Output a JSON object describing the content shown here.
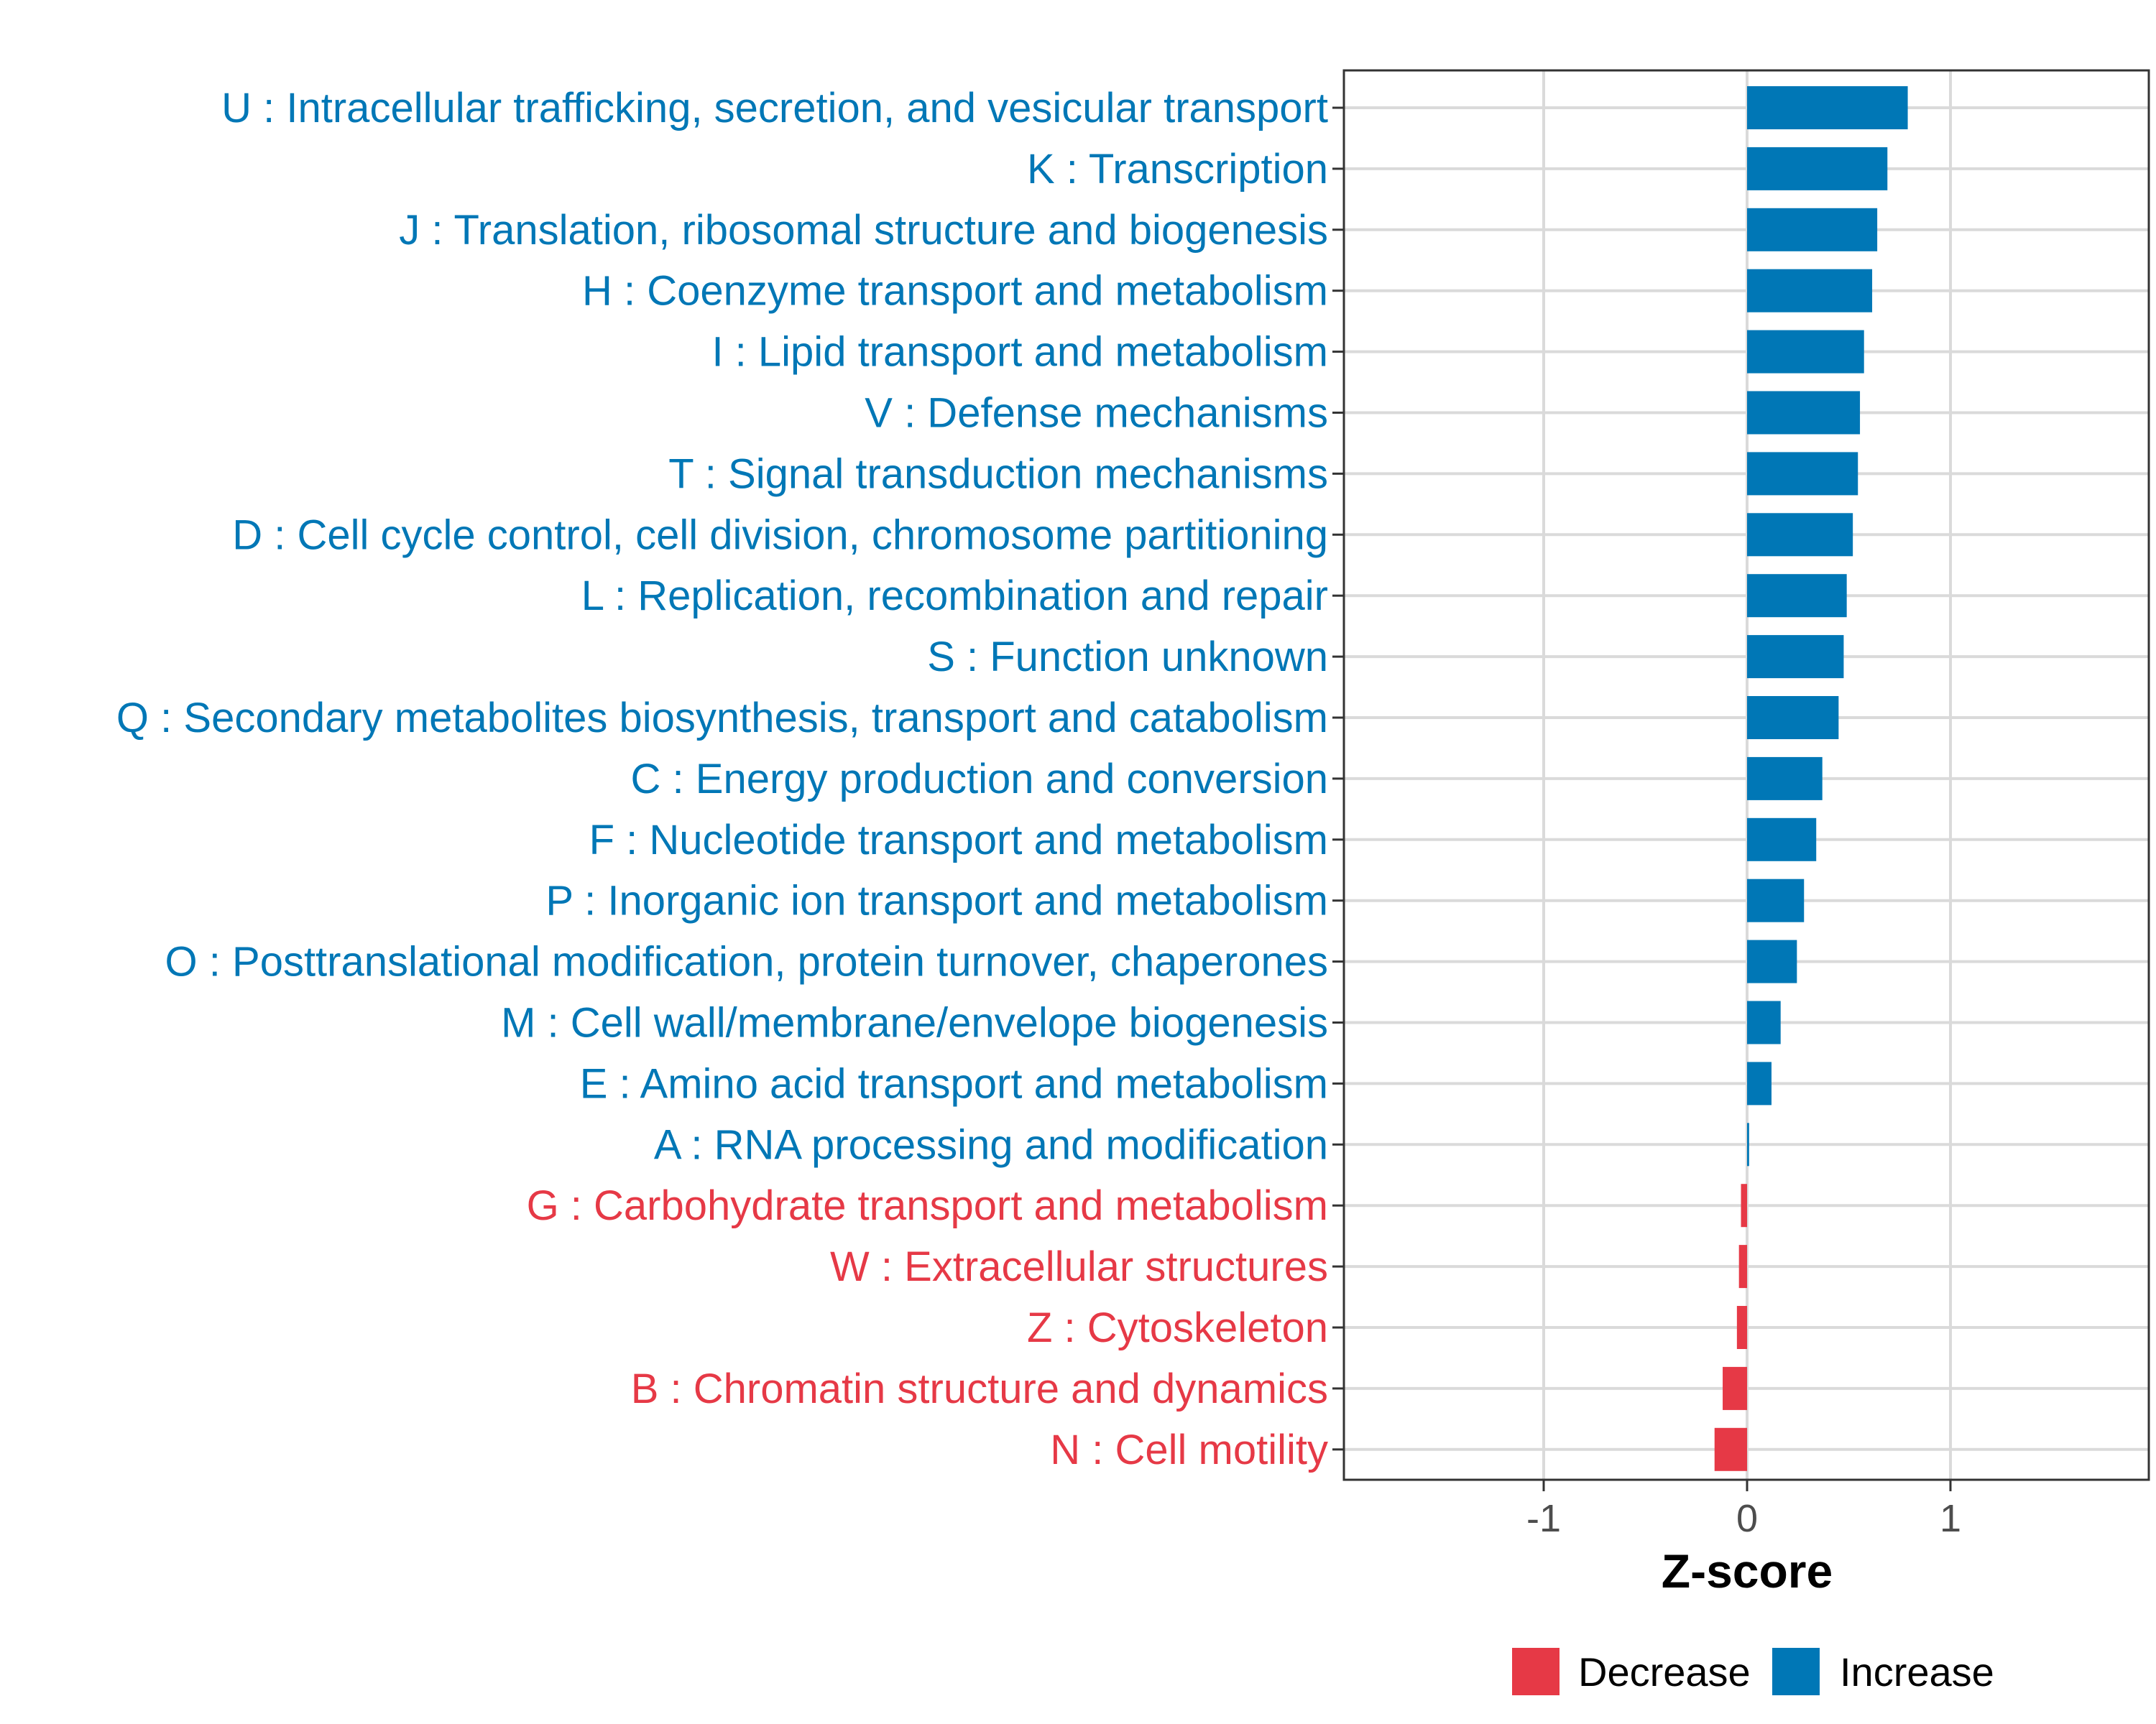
{
  "chart_data": {
    "type": "bar",
    "orientation": "horizontal",
    "title": "",
    "xlabel": "Z-score",
    "ylabel": "",
    "xlim": [
      -1.97,
      1.97
    ],
    "xticks": [
      {
        "value": -1,
        "label": "-1"
      },
      {
        "value": 0,
        "label": "0"
      },
      {
        "value": 1,
        "label": "1"
      }
    ],
    "grid": true,
    "legend_position": "bottom",
    "colors": {
      "Decrease": "#E63946",
      "Increase": "#0077B6"
    },
    "legend": [
      {
        "name": "Decrease",
        "color": "#E63946"
      },
      {
        "name": "Increase",
        "color": "#0077B6"
      }
    ],
    "categories": [
      {
        "label": "U : Intracellular trafficking, secretion, and vesicular transport",
        "value": 0.79,
        "direction": "Increase"
      },
      {
        "label": "K : Transcription",
        "value": 0.69,
        "direction": "Increase"
      },
      {
        "label": "J : Translation, ribosomal structure and biogenesis",
        "value": 0.64,
        "direction": "Increase"
      },
      {
        "label": "H : Coenzyme transport and metabolism",
        "value": 0.615,
        "direction": "Increase"
      },
      {
        "label": "I : Lipid transport and metabolism",
        "value": 0.575,
        "direction": "Increase"
      },
      {
        "label": "V : Defense mechanisms",
        "value": 0.555,
        "direction": "Increase"
      },
      {
        "label": "T : Signal transduction mechanisms",
        "value": 0.545,
        "direction": "Increase"
      },
      {
        "label": "D : Cell cycle control, cell division, chromosome partitioning",
        "value": 0.52,
        "direction": "Increase"
      },
      {
        "label": "L : Replication, recombination and repair",
        "value": 0.49,
        "direction": "Increase"
      },
      {
        "label": "S : Function unknown",
        "value": 0.475,
        "direction": "Increase"
      },
      {
        "label": "Q : Secondary metabolites biosynthesis, transport and catabolism",
        "value": 0.45,
        "direction": "Increase"
      },
      {
        "label": "C : Energy production and conversion",
        "value": 0.37,
        "direction": "Increase"
      },
      {
        "label": "F : Nucleotide transport and metabolism",
        "value": 0.34,
        "direction": "Increase"
      },
      {
        "label": "P : Inorganic ion transport and metabolism",
        "value": 0.28,
        "direction": "Increase"
      },
      {
        "label": "O : Posttranslational modification, protein turnover, chaperones",
        "value": 0.245,
        "direction": "Increase"
      },
      {
        "label": "M : Cell wall/membrane/envelope biogenesis",
        "value": 0.165,
        "direction": "Increase"
      },
      {
        "label": "E : Amino acid transport and metabolism",
        "value": 0.12,
        "direction": "Increase"
      },
      {
        "label": "A : RNA processing and modification",
        "value": 0.01,
        "direction": "Increase"
      },
      {
        "label": "G : Carbohydrate transport and metabolism",
        "value": -0.03,
        "direction": "Decrease"
      },
      {
        "label": "W : Extracellular structures",
        "value": -0.04,
        "direction": "Decrease"
      },
      {
        "label": "Z : Cytoskeleton",
        "value": -0.05,
        "direction": "Decrease"
      },
      {
        "label": "B : Chromatin structure and dynamics",
        "value": -0.12,
        "direction": "Decrease"
      },
      {
        "label": "N : Cell motility",
        "value": -0.16,
        "direction": "Decrease"
      }
    ]
  }
}
